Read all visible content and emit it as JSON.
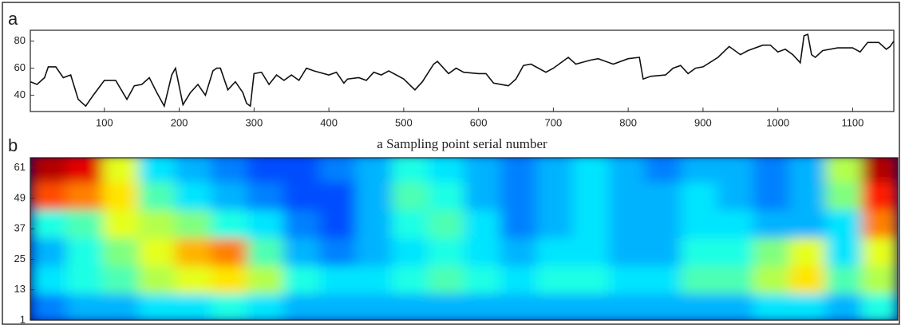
{
  "chart_data": [
    {
      "type": "line",
      "label": "a",
      "xlabel": "a  Sampling point serial number",
      "x": [
        1,
        10,
        20,
        25,
        35,
        45,
        55,
        65,
        75,
        85,
        100,
        115,
        130,
        140,
        150,
        160,
        170,
        180,
        190,
        195,
        205,
        215,
        225,
        235,
        245,
        250,
        255,
        265,
        275,
        285,
        290,
        295,
        300,
        310,
        320,
        330,
        340,
        350,
        360,
        370,
        380,
        400,
        410,
        420,
        425,
        440,
        450,
        460,
        470,
        480,
        500,
        515,
        525,
        540,
        545,
        560,
        570,
        580,
        600,
        610,
        620,
        640,
        650,
        660,
        670,
        690,
        700,
        720,
        730,
        750,
        760,
        780,
        800,
        815,
        820,
        830,
        850,
        860,
        870,
        880,
        890,
        900,
        920,
        935,
        950,
        960,
        980,
        990,
        1000,
        1010,
        1020,
        1030,
        1035,
        1040,
        1045,
        1050,
        1060,
        1080,
        1100,
        1110,
        1120,
        1135,
        1145,
        1150,
        1155
      ],
      "series": [
        {
          "color": "#111111",
          "values": [
            50,
            48,
            53,
            61,
            61,
            53,
            55,
            37,
            32,
            40,
            51,
            51,
            37,
            47,
            48,
            53,
            42,
            32,
            55,
            60,
            33,
            42,
            48,
            40,
            58,
            60,
            60,
            44,
            50,
            42,
            34,
            32,
            56,
            57,
            48,
            55,
            51,
            55,
            51,
            60,
            58,
            55,
            57,
            49,
            52,
            53,
            51,
            57,
            55,
            58,
            52,
            44,
            50,
            63,
            65,
            56,
            60,
            57,
            56,
            56,
            49,
            47,
            52,
            62,
            63,
            57,
            60,
            68,
            63,
            66,
            67,
            63,
            67,
            68,
            52,
            54,
            55,
            60,
            62,
            56,
            60,
            61,
            68,
            76,
            70,
            73,
            77,
            77,
            72,
            74,
            70,
            64,
            84,
            85,
            70,
            68,
            73,
            75,
            75,
            72,
            79,
            79,
            74,
            76,
            80
          ]
        }
      ],
      "xlim": [
        1,
        1155
      ],
      "ylim": [
        28,
        88
      ],
      "xticks": [
        100,
        200,
        300,
        400,
        500,
        600,
        700,
        800,
        900,
        1000,
        1100
      ],
      "yticks": [
        40,
        60,
        80
      ]
    },
    {
      "type": "heatmap",
      "label": "b",
      "x": [
        24,
        72,
        120,
        168,
        216,
        264,
        312,
        360,
        408,
        456,
        504,
        552,
        600,
        648,
        696,
        744,
        792,
        840,
        888,
        936,
        984,
        1032,
        1080,
        1128
      ],
      "y": [
        6,
        17,
        28,
        39,
        50,
        61
      ],
      "z": [
        [
          0.25,
          0.3,
          0.3,
          0.35,
          0.35,
          0.4,
          0.35,
          0.3,
          0.3,
          0.3,
          0.3,
          0.3,
          0.3,
          0.3,
          0.3,
          0.3,
          0.3,
          0.3,
          0.3,
          0.3,
          0.35,
          0.35,
          0.3,
          0.4
        ],
        [
          0.35,
          0.4,
          0.45,
          0.55,
          0.6,
          0.65,
          0.55,
          0.4,
          0.35,
          0.35,
          0.4,
          0.45,
          0.4,
          0.35,
          0.4,
          0.4,
          0.35,
          0.35,
          0.45,
          0.45,
          0.55,
          0.65,
          0.45,
          0.55
        ],
        [
          0.3,
          0.4,
          0.5,
          0.6,
          0.7,
          0.75,
          0.45,
          0.3,
          0.25,
          0.3,
          0.35,
          0.4,
          0.35,
          0.3,
          0.35,
          0.35,
          0.3,
          0.3,
          0.4,
          0.4,
          0.5,
          0.6,
          0.35,
          0.6
        ],
        [
          0.4,
          0.45,
          0.6,
          0.55,
          0.5,
          0.4,
          0.35,
          0.25,
          0.2,
          0.3,
          0.4,
          0.45,
          0.35,
          0.25,
          0.3,
          0.35,
          0.3,
          0.3,
          0.35,
          0.35,
          0.3,
          0.3,
          0.35,
          0.75
        ],
        [
          0.8,
          0.75,
          0.65,
          0.45,
          0.35,
          0.3,
          0.25,
          0.2,
          0.2,
          0.3,
          0.45,
          0.4,
          0.3,
          0.25,
          0.3,
          0.35,
          0.3,
          0.3,
          0.35,
          0.3,
          0.25,
          0.3,
          0.5,
          0.85
        ],
        [
          0.95,
          0.9,
          0.6,
          0.35,
          0.3,
          0.25,
          0.2,
          0.2,
          0.25,
          0.3,
          0.4,
          0.35,
          0.3,
          0.25,
          0.3,
          0.35,
          0.3,
          0.25,
          0.3,
          0.3,
          0.25,
          0.3,
          0.55,
          0.95
        ]
      ],
      "zlim": [
        0,
        1
      ],
      "colormap": "jet",
      "xlim": [
        0,
        1152
      ],
      "ylim": [
        1,
        65
      ],
      "yticks": [
        1,
        13,
        25,
        37,
        49,
        61
      ]
    }
  ]
}
